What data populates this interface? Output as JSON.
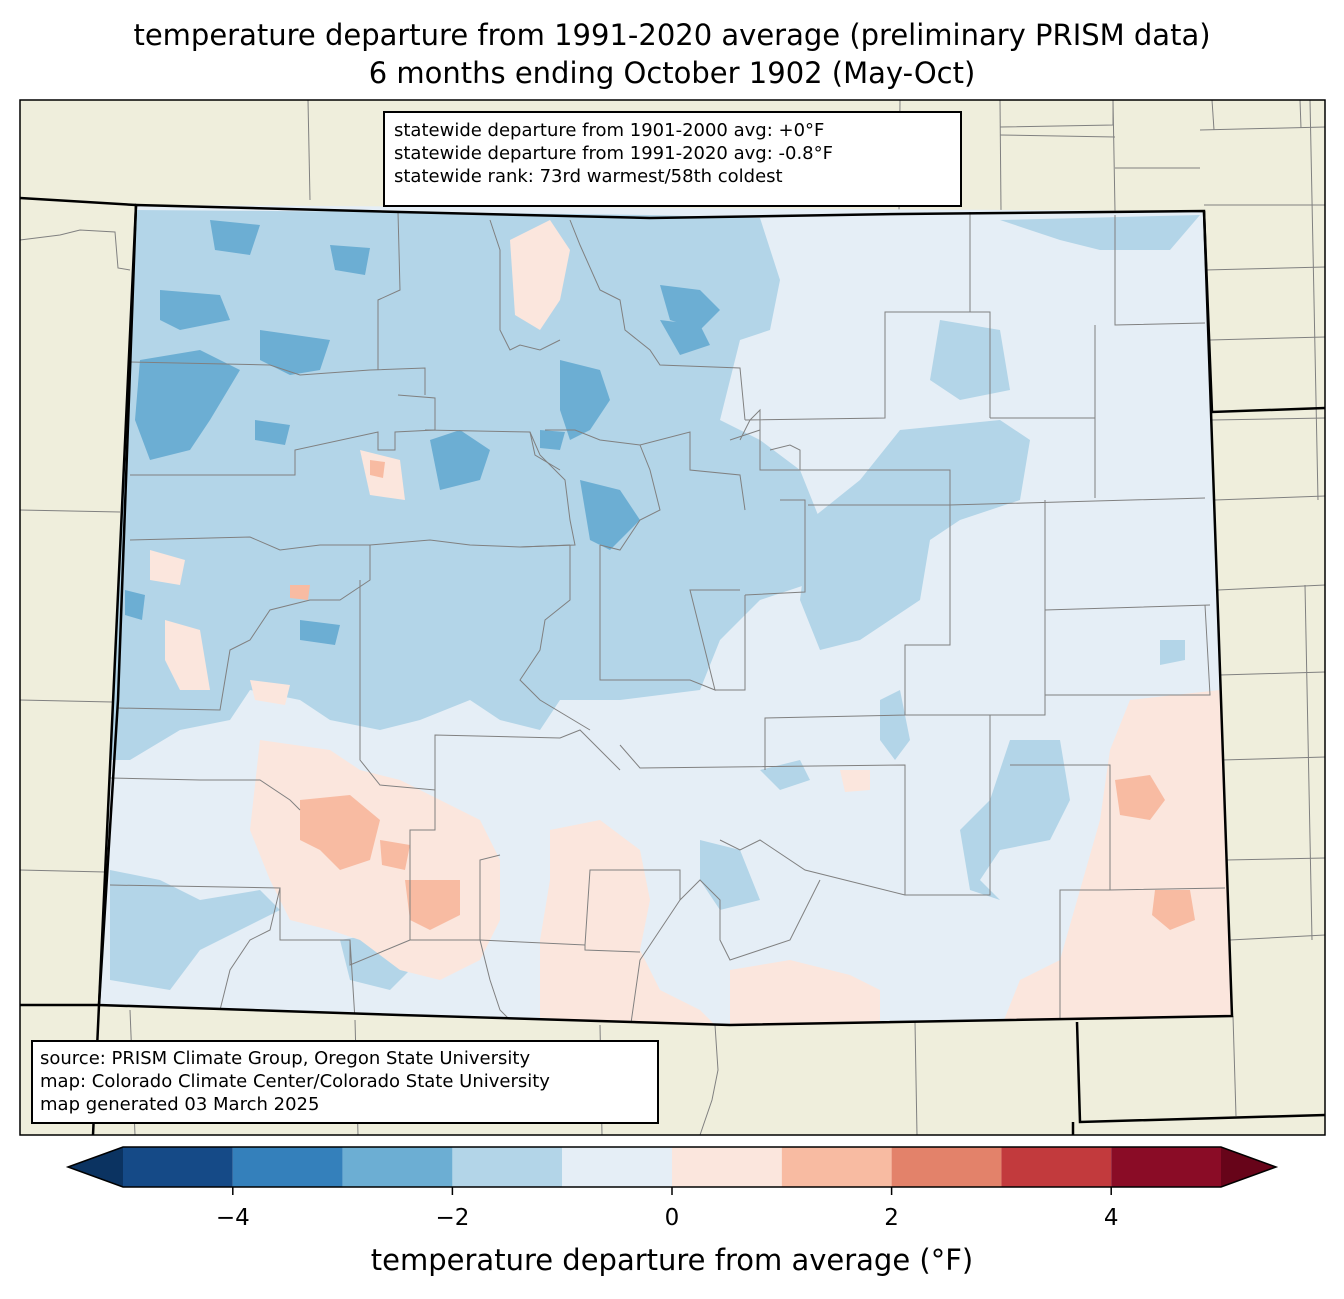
{
  "title": {
    "line1": "temperature departure from 1991-2020 average (preliminary PRISM data)",
    "line2": "6 months ending October 1902 (May-Oct)"
  },
  "stats": {
    "line1": "statewide departure from 1901-2000 avg: +0°F",
    "line2": "statewide departure from 1991-2020 avg: -0.8°F",
    "line3": "statewide rank: 73rd warmest/58th coldest"
  },
  "source": {
    "line1": "source: PRISM Climate Group, Oregon State University",
    "line2": "map: Colorado Climate Center/Colorado State University",
    "line3": "map generated 03 March 2025"
  },
  "colorbar": {
    "label": "temperature departure from average (°F)",
    "range": [
      -5,
      5
    ],
    "ticks": [
      {
        "value": -4,
        "label": "−4"
      },
      {
        "value": -2,
        "label": "−2"
      },
      {
        "value": 0,
        "label": "0"
      },
      {
        "value": 2,
        "label": "2"
      },
      {
        "value": 4,
        "label": "4"
      }
    ],
    "bins": [
      {
        "from": -5,
        "to": -4,
        "color": "#154a87"
      },
      {
        "from": -4,
        "to": -3,
        "color": "#3480bb"
      },
      {
        "from": -3,
        "to": -2,
        "color": "#6caed3"
      },
      {
        "from": -2,
        "to": -1,
        "color": "#b3d5e8"
      },
      {
        "from": -1,
        "to": 0,
        "color": "#e5eef6"
      },
      {
        "from": 0,
        "to": 1,
        "color": "#fbe6dd"
      },
      {
        "from": 1,
        "to": 2,
        "color": "#f8bba2"
      },
      {
        "from": 2,
        "to": 3,
        "color": "#e3826a"
      },
      {
        "from": 3,
        "to": 4,
        "color": "#c23a3d"
      },
      {
        "from": 4,
        "to": 5,
        "color": "#8a0c26"
      }
    ],
    "under_color": "#0b3361",
    "over_color": "#670419"
  },
  "colors": {
    "land": "#efeedc",
    "state_line": "#000000",
    "county_line": "#808080"
  }
}
